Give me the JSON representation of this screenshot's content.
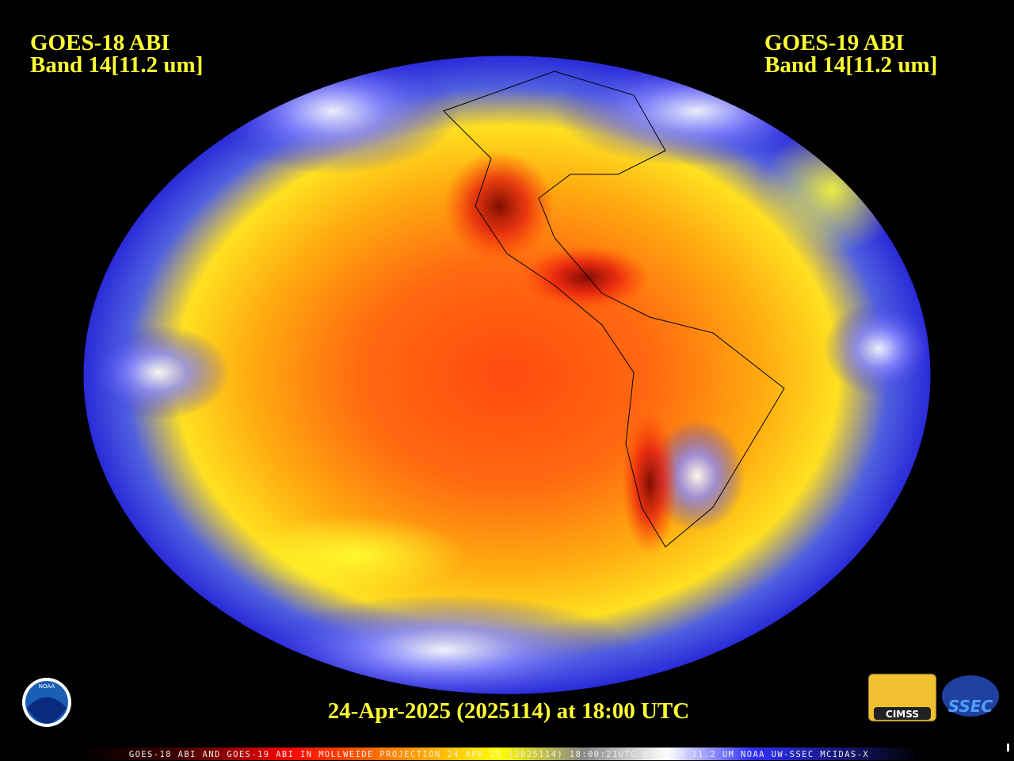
{
  "header": {
    "left": {
      "line1": "GOES-18 ABI",
      "line2": "Band 14[11.2 um]"
    },
    "right": {
      "line1": "GOES-19 ABI",
      "line2": "Band 14[11.2 um]"
    }
  },
  "timestamp": "24-Apr-2025 (2025114) at 18:00 UTC",
  "footer": "GOES-18 ABI AND GOES-19 ABI IN MOLLWEIDE PROJECTION 24 APR 25 (2025114) 18:00:21UTC BAND-14 11.2 UM NOAA UW-SSEC MCIDAS-X",
  "logos": {
    "noaa": "NOAA",
    "cimss": "CIMSS",
    "ssec": "SSEC"
  }
}
